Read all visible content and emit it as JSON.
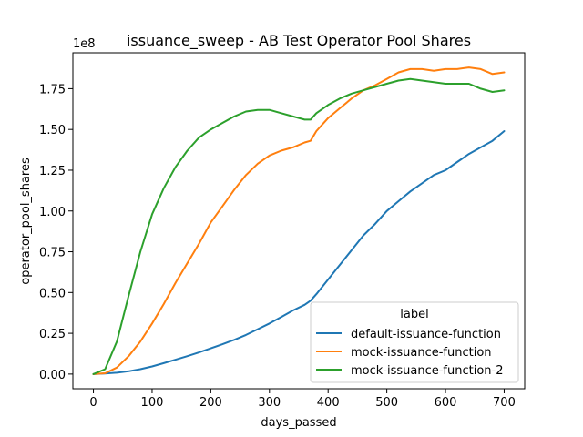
{
  "chart_data": {
    "type": "line",
    "title": "issuance_sweep - AB Test Operator Pool Shares",
    "xlabel": "days_passed",
    "ylabel": "operator_pool_shares",
    "y_offset_label": "1e8",
    "xlim": [
      -35,
      735
    ],
    "ylim": [
      -0.09,
      1.97
    ],
    "x_ticks": [
      0,
      100,
      200,
      300,
      400,
      500,
      600,
      700
    ],
    "x_tick_labels": [
      "0",
      "100",
      "200",
      "300",
      "400",
      "500",
      "600",
      "700"
    ],
    "y_ticks": [
      0,
      0.25,
      0.5,
      0.75,
      1.0,
      1.25,
      1.5,
      1.75
    ],
    "y_tick_labels": [
      "0.00",
      "0.25",
      "0.50",
      "0.75",
      "1.00",
      "1.25",
      "1.50",
      "1.75"
    ],
    "grid": false,
    "legend": {
      "title": "label",
      "placement": "lower-right"
    },
    "series": [
      {
        "name": "default-issuance-function",
        "color": "#1f77b4",
        "x": [
          0,
          20,
          40,
          60,
          80,
          100,
          120,
          140,
          160,
          180,
          200,
          220,
          240,
          260,
          280,
          300,
          320,
          340,
          360,
          370,
          380,
          400,
          420,
          440,
          460,
          480,
          500,
          520,
          540,
          560,
          580,
          600,
          620,
          640,
          660,
          680,
          700
        ],
        "y": [
          0,
          0.003,
          0.008,
          0.017,
          0.03,
          0.047,
          0.067,
          0.088,
          0.11,
          0.133,
          0.158,
          0.183,
          0.21,
          0.24,
          0.275,
          0.31,
          0.35,
          0.39,
          0.425,
          0.45,
          0.49,
          0.58,
          0.67,
          0.76,
          0.85,
          0.92,
          1.0,
          1.06,
          1.12,
          1.17,
          1.22,
          1.25,
          1.3,
          1.35,
          1.39,
          1.43,
          1.49
        ]
      },
      {
        "name": "mock-issuance-function",
        "color": "#ff7f0e",
        "x": [
          0,
          20,
          40,
          60,
          80,
          100,
          120,
          140,
          160,
          180,
          200,
          220,
          240,
          260,
          280,
          300,
          320,
          340,
          360,
          370,
          380,
          400,
          420,
          440,
          460,
          480,
          500,
          520,
          540,
          560,
          580,
          600,
          620,
          640,
          660,
          680,
          700
        ],
        "y": [
          0,
          0.005,
          0.04,
          0.11,
          0.2,
          0.31,
          0.43,
          0.56,
          0.68,
          0.8,
          0.93,
          1.03,
          1.13,
          1.22,
          1.29,
          1.34,
          1.37,
          1.39,
          1.42,
          1.43,
          1.49,
          1.57,
          1.63,
          1.69,
          1.74,
          1.77,
          1.81,
          1.85,
          1.87,
          1.87,
          1.86,
          1.87,
          1.87,
          1.88,
          1.87,
          1.84,
          1.85
        ]
      },
      {
        "name": "mock-issuance-function-2",
        "color": "#2ca02c",
        "x": [
          0,
          20,
          40,
          60,
          80,
          100,
          120,
          140,
          160,
          180,
          200,
          220,
          240,
          260,
          280,
          300,
          320,
          340,
          360,
          370,
          380,
          400,
          420,
          440,
          460,
          480,
          500,
          520,
          540,
          560,
          580,
          600,
          620,
          640,
          660,
          680,
          700
        ],
        "y": [
          0,
          0.03,
          0.2,
          0.48,
          0.75,
          0.98,
          1.14,
          1.27,
          1.37,
          1.45,
          1.5,
          1.54,
          1.58,
          1.61,
          1.62,
          1.62,
          1.6,
          1.58,
          1.56,
          1.56,
          1.6,
          1.65,
          1.69,
          1.72,
          1.74,
          1.76,
          1.78,
          1.8,
          1.81,
          1.8,
          1.79,
          1.78,
          1.78,
          1.78,
          1.75,
          1.73,
          1.74
        ]
      }
    ]
  }
}
